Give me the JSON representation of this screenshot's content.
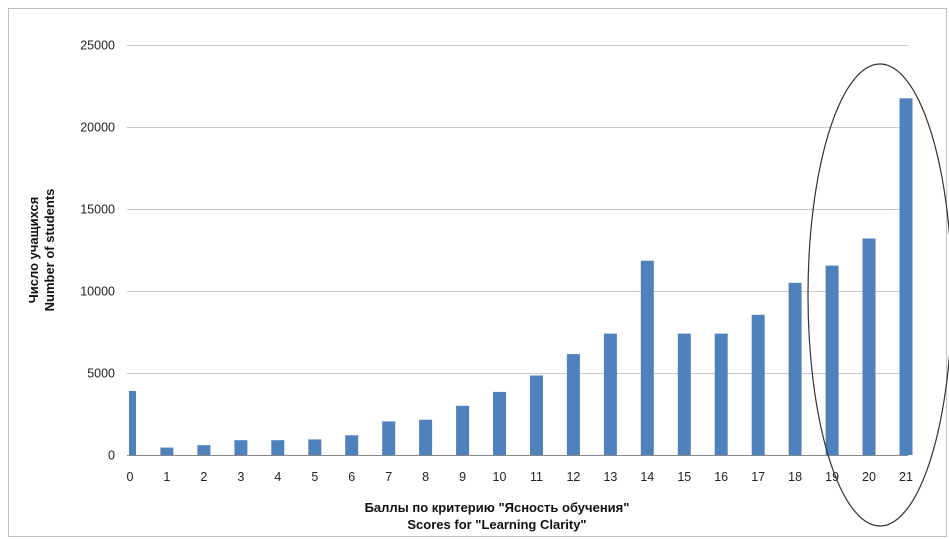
{
  "chart_data": {
    "type": "bar",
    "title": "",
    "xlabel": [
      "Баллы по критерию \"Ясность обучения\"",
      "Scores for \"Learning Clarity\""
    ],
    "ylabel": [
      "Число учащихся",
      "Number of students"
    ],
    "categories": [
      "0",
      "1",
      "2",
      "3",
      "4",
      "5",
      "6",
      "7",
      "8",
      "9",
      "10",
      "11",
      "12",
      "13",
      "14",
      "15",
      "16",
      "17",
      "18",
      "19",
      "20",
      "21"
    ],
    "values": [
      3900,
      450,
      600,
      900,
      900,
      950,
      1200,
      2050,
      2150,
      3000,
      3850,
      4850,
      6150,
      7400,
      11850,
      7400,
      7400,
      8550,
      10500,
      11550,
      13200,
      21750
    ],
    "ylim": [
      0,
      25000
    ],
    "yticks": [
      "0",
      "5000",
      "10000",
      "15000",
      "20000",
      "25000"
    ],
    "grid": true,
    "legend": "none",
    "bar_color": "#4f81bd",
    "annotation": "ellipse highlighting scores 19–21"
  }
}
